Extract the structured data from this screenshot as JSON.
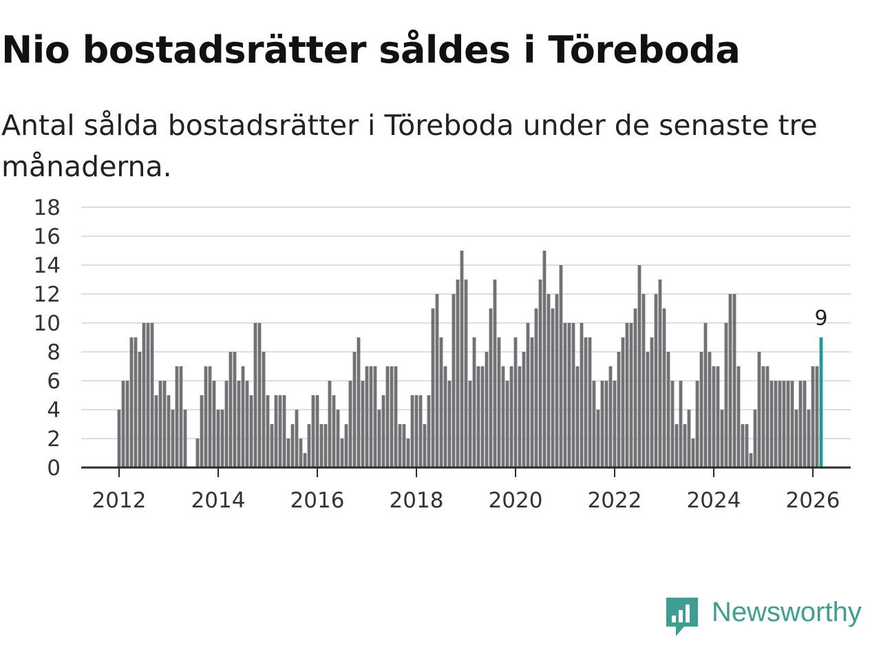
{
  "colors": {
    "bar": "#727276",
    "highlight": "#1a9e94",
    "grid": "#dedede",
    "axis": "#2b2b2b",
    "brand": "#3f9d92"
  },
  "chart_data": {
    "type": "bar",
    "title": "Nio bostadsrätter såldes i Töreboda",
    "subtitle": "Antal sålda bostadsrätter i Töreboda under de senaste tre månaderna.",
    "xlabel": "",
    "ylabel": "",
    "ylim": [
      0,
      18
    ],
    "yticks": [
      "0",
      "2",
      "4",
      "6",
      "8",
      "10",
      "12",
      "14",
      "16",
      "18"
    ],
    "xticks": [
      "2012",
      "2014",
      "2016",
      "2018",
      "2020",
      "2022",
      "2024",
      "2026"
    ],
    "grid": true,
    "start_year": 2012,
    "start_month": 1,
    "highlight_label": "9",
    "values": [
      4,
      6,
      6,
      9,
      9,
      8,
      10,
      10,
      10,
      5,
      6,
      6,
      5,
      4,
      7,
      7,
      4,
      0,
      0,
      2,
      5,
      7,
      7,
      6,
      4,
      4,
      6,
      8,
      8,
      6,
      7,
      6,
      5,
      10,
      10,
      8,
      5,
      3,
      5,
      5,
      5,
      2,
      3,
      4,
      2,
      1,
      3,
      5,
      5,
      3,
      3,
      6,
      5,
      4,
      2,
      3,
      6,
      8,
      9,
      6,
      7,
      7,
      7,
      4,
      5,
      7,
      7,
      7,
      3,
      3,
      2,
      5,
      5,
      5,
      3,
      5,
      11,
      12,
      9,
      7,
      6,
      12,
      13,
      15,
      13,
      6,
      9,
      7,
      7,
      8,
      11,
      13,
      9,
      7,
      6,
      7,
      9,
      7,
      8,
      10,
      9,
      11,
      13,
      15,
      12,
      11,
      12,
      14,
      10,
      10,
      10,
      7,
      10,
      9,
      9,
      6,
      4,
      6,
      6,
      7,
      6,
      8,
      9,
      10,
      10,
      11,
      14,
      12,
      8,
      9,
      12,
      13,
      11,
      8,
      6,
      3,
      6,
      3,
      4,
      2,
      6,
      8,
      10,
      8,
      7,
      7,
      4,
      10,
      12,
      12,
      7,
      3,
      3,
      1,
      4,
      8,
      7,
      7,
      6,
      6,
      6,
      6,
      6,
      6,
      4,
      6,
      6,
      4,
      7,
      7,
      9
    ]
  },
  "branding": {
    "logo_text": "Newsworthy",
    "logo_icon": "newsworthy-chart-bubble-icon"
  }
}
